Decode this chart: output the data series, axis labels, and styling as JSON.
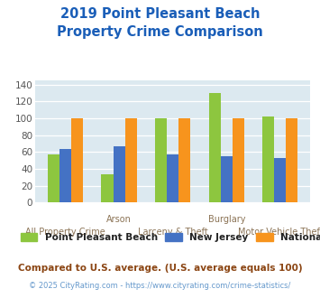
{
  "title": "2019 Point Pleasant Beach\nProperty Crime Comparison",
  "categories": [
    "All Property Crime",
    "Arson",
    "Larceny & Theft",
    "Burglary",
    "Motor Vehicle Theft"
  ],
  "series": {
    "Point Pleasant Beach": [
      57,
      34,
      100,
      130,
      102
    ],
    "New Jersey": [
      64,
      67,
      57,
      55,
      53
    ],
    "National": [
      100,
      100,
      100,
      100,
      100
    ]
  },
  "colors": {
    "Point Pleasant Beach": "#8dc63f",
    "New Jersey": "#4472c4",
    "National": "#f7941d"
  },
  "ylim": [
    0,
    145
  ],
  "yticks": [
    0,
    20,
    40,
    60,
    80,
    100,
    120,
    140
  ],
  "title_color": "#1a5eb8",
  "title_fontsize": 10.5,
  "axis_label_color": "#8b7355",
  "footnote1": "Compared to U.S. average. (U.S. average equals 100)",
  "footnote2": "© 2025 CityRating.com - https://www.cityrating.com/crime-statistics/",
  "footnote1_color": "#8b4513",
  "footnote2_color": "#6699cc",
  "fig_bg_color": "#ffffff",
  "plot_bg_color": "#dce9f0",
  "bar_width": 0.22
}
